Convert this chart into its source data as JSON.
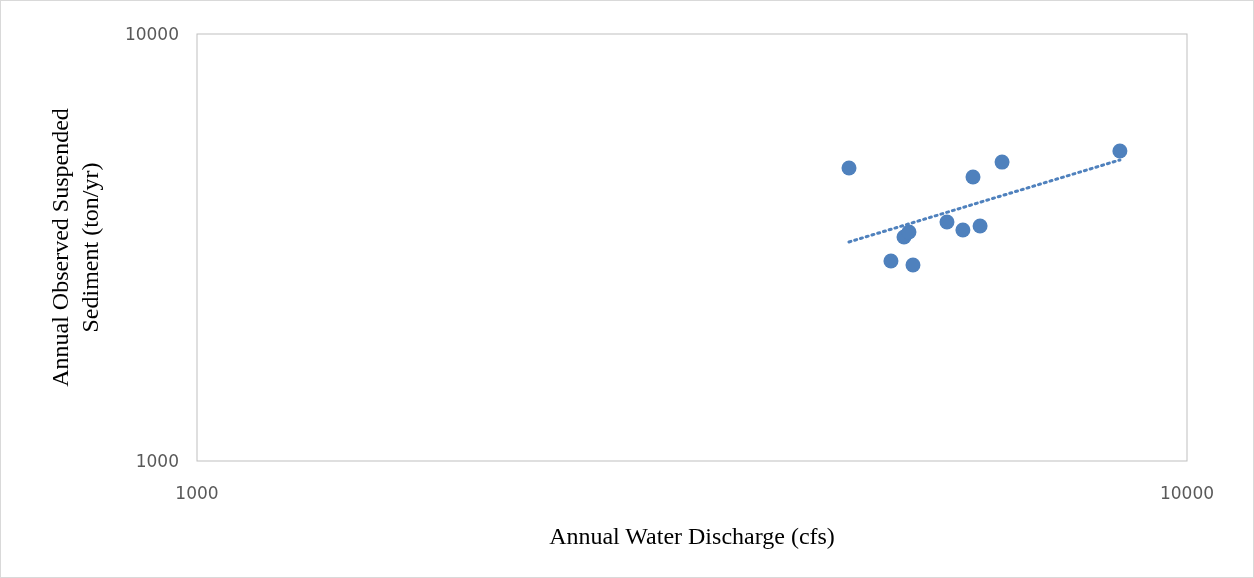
{
  "chart_data": {
    "type": "scatter",
    "xlabel": "Annual Water Discharge (cfs)",
    "ylabel": "Annual Observed Suspended Sediment (ton/yr)",
    "log": "xy",
    "xlim": [
      1000,
      10000
    ],
    "ylim": [
      1000,
      10000
    ],
    "xticks": [
      1000,
      10000
    ],
    "yticks": [
      1000,
      10000
    ],
    "grid": false,
    "marker": "circle",
    "series": [
      {
        "color": "#4f81bd",
        "x": [
          4556,
          5023,
          5178,
          5238,
          5287,
          5722,
          5938,
          6079,
          6180,
          6504,
          8555
        ],
        "values": [
          4856,
          2941,
          3347,
          3438,
          2878,
          3628,
          3475,
          4625,
          3551,
          5012,
          5322
        ]
      },
      {
        "type": "line",
        "color": "#4f81bd",
        "line_style": "dotted",
        "marker": "none",
        "x": [
          4556,
          8555
        ],
        "values": [
          3258,
          5070
        ]
      }
    ]
  }
}
